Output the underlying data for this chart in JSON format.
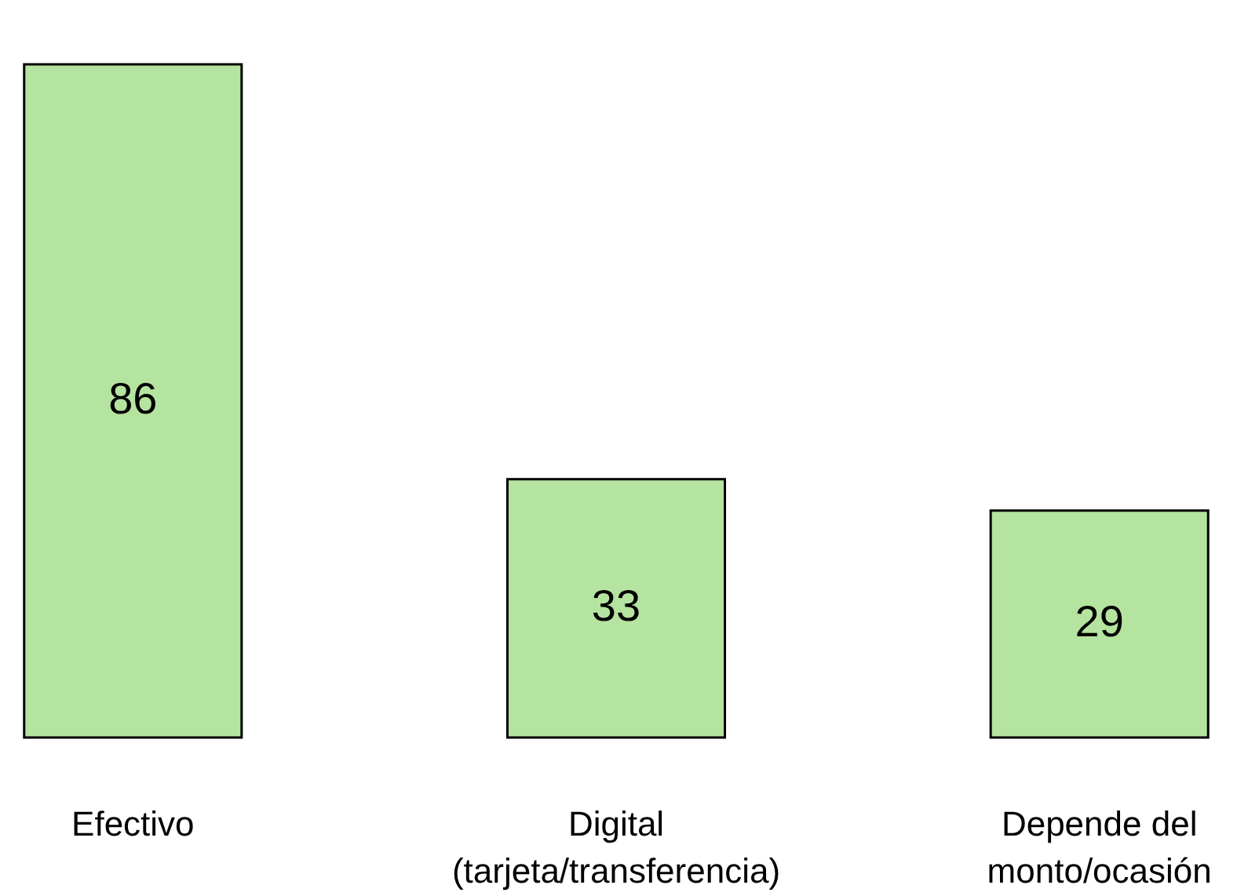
{
  "chart_data": {
    "type": "bar",
    "categories": [
      "Efectivo",
      "Digital (tarjeta/transferencia)",
      "Depende del monto/ocasión"
    ],
    "values": [
      86,
      33,
      29
    ],
    "color": "#b5e3a0",
    "data_labels": true
  }
}
